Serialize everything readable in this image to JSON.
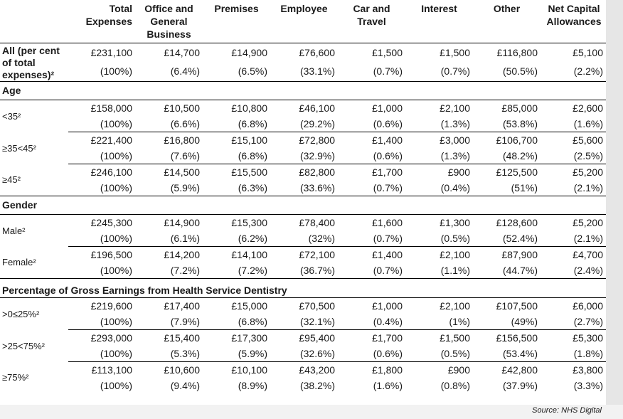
{
  "headers": [
    "",
    "Total Expenses",
    "Office and General Business",
    "Premises",
    "Employee",
    "Car and Travel",
    "Interest",
    "Other",
    "Net Capital Allowances"
  ],
  "all_row": {
    "label": "All (per cent of total expenses)²",
    "values": [
      "£231,100",
      "£14,700",
      "£14,900",
      "£76,600",
      "£1,500",
      "£1,500",
      "£116,800",
      "£5,100"
    ],
    "percents": [
      "(100%)",
      "(6.4%)",
      "(6.5%)",
      "(33.1%)",
      "(0.7%)",
      "(0.7%)",
      "(50.5%)",
      "(2.2%)"
    ]
  },
  "sections": [
    {
      "title": "Age",
      "rows": [
        {
          "label": "<35²",
          "values": [
            "£158,000",
            "£10,500",
            "£10,800",
            "£46,100",
            "£1,000",
            "£2,100",
            "£85,000",
            "£2,600"
          ],
          "percents": [
            "(100%)",
            "(6.6%)",
            "(6.8%)",
            "(29.2%)",
            "(0.6%)",
            "(1.3%)",
            "(53.8%)",
            "(1.6%)"
          ]
        },
        {
          "label": "≥35<45²",
          "values": [
            "£221,400",
            "£16,800",
            "£15,100",
            "£72,800",
            "£1,400",
            "£3,000",
            "£106,700",
            "£5,600"
          ],
          "percents": [
            "(100%)",
            "(7.6%)",
            "(6.8%)",
            "(32.9%)",
            "(0.6%)",
            "(1.3%)",
            "(48.2%)",
            "(2.5%)"
          ]
        },
        {
          "label": "≥45²",
          "values": [
            "£246,100",
            "£14,500",
            "£15,500",
            "£82,800",
            "£1,700",
            "£900",
            "£125,500",
            "£5,200"
          ],
          "percents": [
            "(100%)",
            "(5.9%)",
            "(6.3%)",
            "(33.6%)",
            "(0.7%)",
            "(0.4%)",
            "(51%)",
            "(2.1%)"
          ]
        }
      ]
    },
    {
      "title": "Gender",
      "rows": [
        {
          "label": "Male²",
          "values": [
            "£245,300",
            "£14,900",
            "£15,300",
            "£78,400",
            "£1,600",
            "£1,300",
            "£128,600",
            "£5,200"
          ],
          "percents": [
            "(100%)",
            "(6.1%)",
            "(6.2%)",
            "(32%)",
            "(0.7%)",
            "(0.5%)",
            "(52.4%)",
            "(2.1%)"
          ]
        },
        {
          "label": "Female²",
          "values": [
            "£196,500",
            "£14,200",
            "£14,100",
            "£72,100",
            "£1,400",
            "£2,100",
            "£87,900",
            "£4,700"
          ],
          "percents": [
            "(100%)",
            "(7.2%)",
            "(7.2%)",
            "(36.7%)",
            "(0.7%)",
            "(1.1%)",
            "(44.7%)",
            "(2.4%)"
          ]
        }
      ]
    },
    {
      "title": "Percentage of Gross Earnings from Health Service Dentistry",
      "rows": [
        {
          "label": ">0≤25%²",
          "values": [
            "£219,600",
            "£17,400",
            "£15,000",
            "£70,500",
            "£1,000",
            "£2,100",
            "£107,500",
            "£6,000"
          ],
          "percents": [
            "(100%)",
            "(7.9%)",
            "(6.8%)",
            "(32.1%)",
            "(0.4%)",
            "(1%)",
            "(49%)",
            "(2.7%)"
          ]
        },
        {
          "label": ">25<75%²",
          "values": [
            "£293,000",
            "£15,400",
            "£17,300",
            "£95,400",
            "£1,700",
            "£1,500",
            "£156,500",
            "£5,300"
          ],
          "percents": [
            "(100%)",
            "(5.3%)",
            "(5.9%)",
            "(32.6%)",
            "(0.6%)",
            "(0.5%)",
            "(53.4%)",
            "(1.8%)"
          ]
        },
        {
          "label": "≥75%²",
          "values": [
            "£113,100",
            "£10,600",
            "£10,100",
            "£43,200",
            "£1,800",
            "£900",
            "£42,800",
            "£3,800"
          ],
          "percents": [
            "(100%)",
            "(9.4%)",
            "(8.9%)",
            "(38.2%)",
            "(1.6%)",
            "(0.8%)",
            "(37.9%)",
            "(3.3%)"
          ]
        }
      ]
    }
  ],
  "source": "Source: NHS Digital"
}
